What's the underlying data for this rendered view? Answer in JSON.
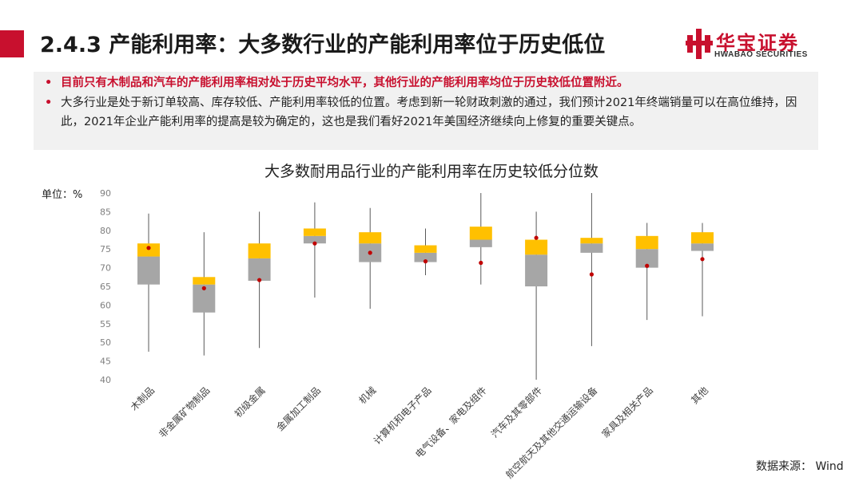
{
  "header": {
    "title": "2.4.3 产能利用率：大多数行业的产能利用率位于历史低位",
    "logo_cn": "华宝证券",
    "logo_en": "HWABAO SECURITIES",
    "brand_color": "#c8102e"
  },
  "bullets": [
    "目前只有木制品和汽车的产能利用率相对处于历史平均水平，其他行业的产能利用率均位于历史较低位置附近。",
    "大多行业是处于新订单较高、库存较低、产能利用率较低的位置。考虑到新一轮财政刺激的通过，我们预计2021年终端销量可以在高位维持，因此，2021年企业产能利用率的提高是较为确定的，这也是我们看好2021年美国经济继续向上修复的重要关键点。"
  ],
  "bullet_marker": "•",
  "unit_label": "单位：%",
  "source": "数据来源：  Wind",
  "chart_data": {
    "type": "box",
    "title": "大多数耐用品行业的产能利用率在历史较低分位数",
    "ylim": [
      40,
      90
    ],
    "yticks": [
      40,
      45,
      50,
      55,
      60,
      65,
      70,
      75,
      80,
      85,
      90
    ],
    "grid": false,
    "colors": {
      "lower_box": "#a6a6a6",
      "upper_box": "#ffc000",
      "current_marker": "#c00000",
      "whisker": "#595959"
    },
    "categories": [
      "木制品",
      "非金属矿物制品",
      "初级金属",
      "金属加工制品",
      "机械",
      "计算机和电子产品",
      "电气设备、家电及组件",
      "汽车及其零部件",
      "航空航天及其他交通运输设备",
      "家具及相关产品",
      "其他"
    ],
    "min": [
      47.5,
      46.5,
      48.5,
      62.0,
      59.0,
      68.0,
      65.5,
      40.0,
      49.0,
      56.0,
      57.0
    ],
    "q1": [
      65.5,
      58.0,
      66.5,
      76.5,
      71.5,
      71.5,
      75.5,
      65.0,
      74.0,
      70.0,
      74.5
    ],
    "median": [
      73.0,
      65.5,
      72.5,
      78.5,
      76.5,
      74.0,
      77.5,
      73.5,
      76.5,
      75.0,
      76.5
    ],
    "q3": [
      76.5,
      67.5,
      76.5,
      80.5,
      79.5,
      76.0,
      81.0,
      77.5,
      78.0,
      78.5,
      79.5
    ],
    "max": [
      84.5,
      79.5,
      85.0,
      87.5,
      86.0,
      80.5,
      90.0,
      85.0,
      90.0,
      82.0,
      82.0
    ],
    "current": [
      75.3,
      64.5,
      66.7,
      76.5,
      74.0,
      71.7,
      71.3,
      78.0,
      68.2,
      70.5,
      72.3
    ]
  }
}
